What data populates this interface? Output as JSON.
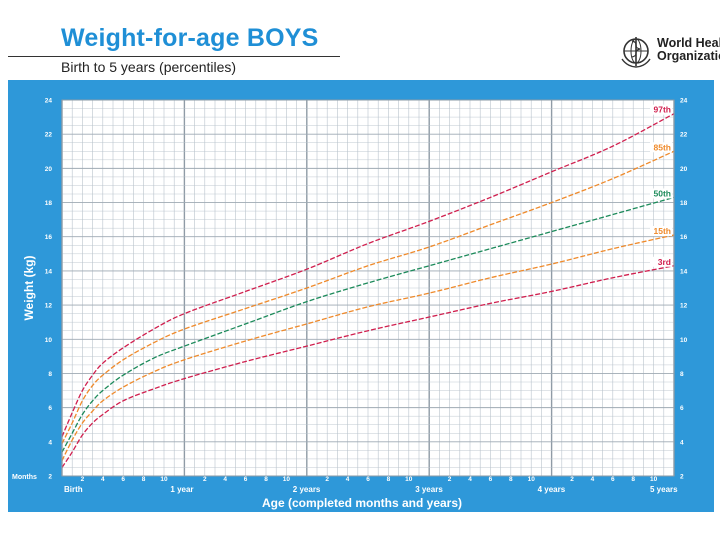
{
  "header": {
    "title": "Weight-for-age BOYS",
    "subtitle": "Birth to 5 years (percentiles)",
    "logo_line1": "World Health",
    "logo_line2": "Organization",
    "logo_icon": "who-emblem-icon"
  },
  "colors": {
    "panel": "#2e98d9",
    "plot_bg": "#ffffff",
    "grid": "#b9c3cc",
    "p97": "#d01f4e",
    "p85": "#ef8a2b",
    "p50": "#1c8a5a",
    "p15": "#ef8a2b",
    "p3": "#d01f4e"
  },
  "chart_data": {
    "type": "line",
    "title": "Weight-for-age BOYS",
    "subtitle": "Birth to 5 years (percentiles)",
    "xlabel": "Age (completed months and years)",
    "ylabel": "Weight (kg)",
    "xlim": [
      0,
      60
    ],
    "ylim": [
      2,
      24
    ],
    "x_unit_label": "Months",
    "y_ticks": [
      2,
      4,
      6,
      8,
      10,
      12,
      14,
      16,
      18,
      20,
      22,
      24
    ],
    "x_month_ticks": [
      {
        "x": 2,
        "label": "2"
      },
      {
        "x": 4,
        "label": "4"
      },
      {
        "x": 6,
        "label": "6"
      },
      {
        "x": 8,
        "label": "8"
      },
      {
        "x": 10,
        "label": "10"
      },
      {
        "x": 14,
        "label": "2"
      },
      {
        "x": 16,
        "label": "4"
      },
      {
        "x": 18,
        "label": "6"
      },
      {
        "x": 20,
        "label": "8"
      },
      {
        "x": 22,
        "label": "10"
      },
      {
        "x": 26,
        "label": "2"
      },
      {
        "x": 28,
        "label": "4"
      },
      {
        "x": 30,
        "label": "6"
      },
      {
        "x": 32,
        "label": "8"
      },
      {
        "x": 34,
        "label": "10"
      },
      {
        "x": 38,
        "label": "2"
      },
      {
        "x": 40,
        "label": "4"
      },
      {
        "x": 42,
        "label": "6"
      },
      {
        "x": 44,
        "label": "8"
      },
      {
        "x": 46,
        "label": "10"
      },
      {
        "x": 50,
        "label": "2"
      },
      {
        "x": 52,
        "label": "4"
      },
      {
        "x": 54,
        "label": "6"
      },
      {
        "x": 56,
        "label": "8"
      },
      {
        "x": 58,
        "label": "10"
      }
    ],
    "x_year_ticks": [
      {
        "x": 0,
        "label": "Birth"
      },
      {
        "x": 12,
        "label": "1 year"
      },
      {
        "x": 24,
        "label": "2 years"
      },
      {
        "x": 36,
        "label": "3 years"
      },
      {
        "x": 48,
        "label": "4 years"
      },
      {
        "x": 60,
        "label": "5 years"
      }
    ],
    "grid": true,
    "x": [
      0,
      1,
      2,
      3,
      4,
      6,
      9,
      12,
      18,
      24,
      30,
      36,
      42,
      48,
      54,
      60
    ],
    "series": [
      {
        "name": "97th",
        "color_key": "p97",
        "values": [
          4.3,
          5.7,
          7.0,
          7.9,
          8.6,
          9.5,
          10.6,
          11.5,
          12.8,
          14.1,
          15.6,
          16.9,
          18.3,
          19.8,
          21.3,
          23.2
        ]
      },
      {
        "name": "85th",
        "color_key": "p85",
        "values": [
          3.9,
          5.1,
          6.4,
          7.3,
          7.9,
          8.8,
          9.8,
          10.6,
          11.8,
          13.0,
          14.3,
          15.4,
          16.7,
          18.0,
          19.4,
          21.0
        ]
      },
      {
        "name": "50th",
        "color_key": "p50",
        "values": [
          3.4,
          4.5,
          5.6,
          6.4,
          7.0,
          7.9,
          8.9,
          9.6,
          10.9,
          12.2,
          13.3,
          14.3,
          15.3,
          16.3,
          17.3,
          18.3
        ]
      },
      {
        "name": "15th",
        "color_key": "p15",
        "values": [
          2.9,
          4.1,
          5.1,
          5.8,
          6.4,
          7.2,
          8.1,
          8.8,
          9.9,
          10.9,
          11.9,
          12.7,
          13.6,
          14.4,
          15.3,
          16.1
        ]
      },
      {
        "name": "3rd",
        "color_key": "p3",
        "values": [
          2.5,
          3.4,
          4.4,
          5.1,
          5.6,
          6.4,
          7.1,
          7.7,
          8.7,
          9.6,
          10.5,
          11.3,
          12.1,
          12.8,
          13.6,
          14.3
        ]
      }
    ]
  }
}
